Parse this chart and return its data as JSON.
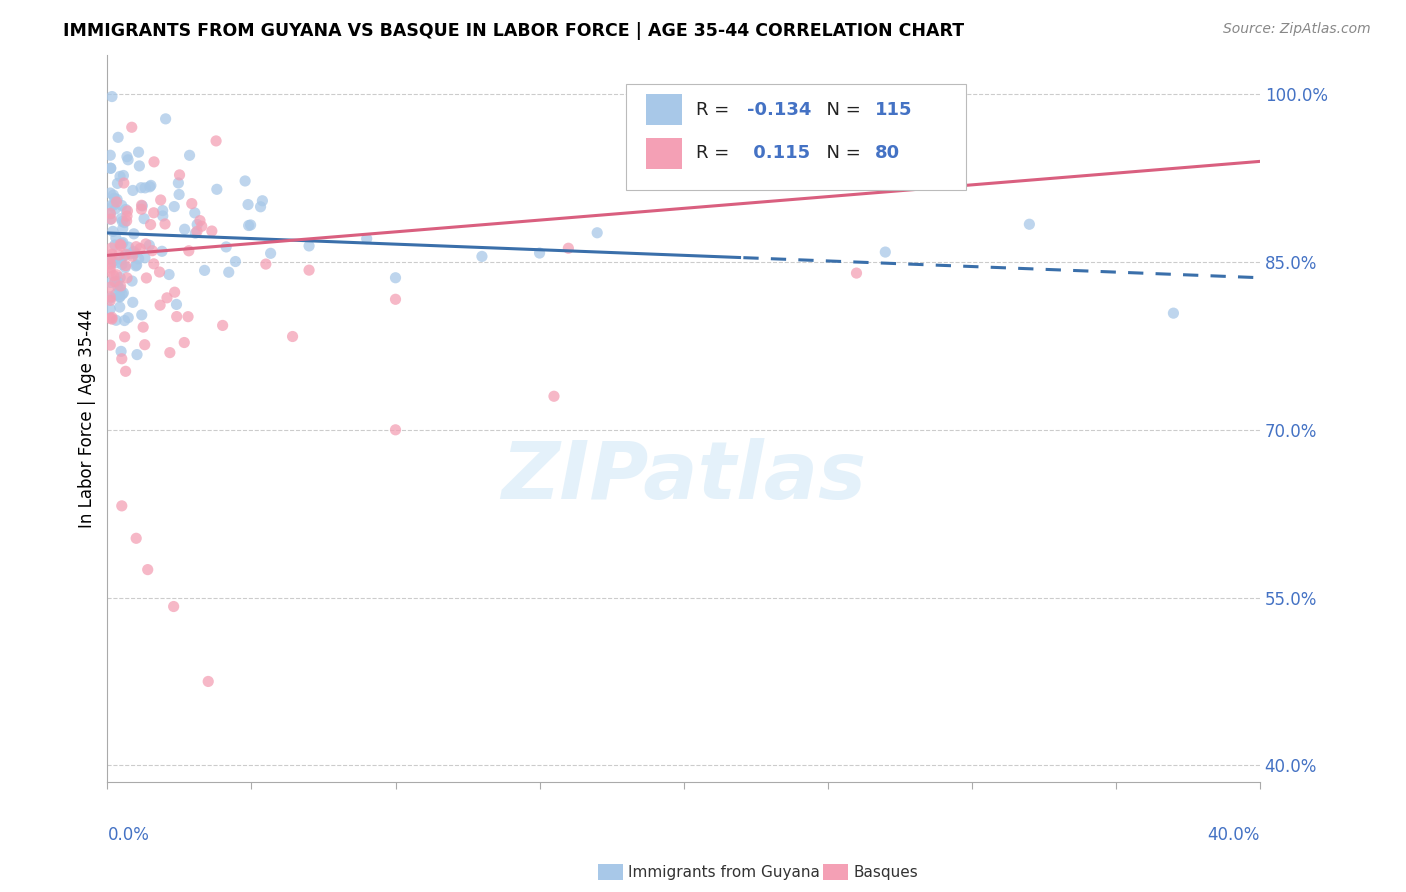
{
  "title": "IMMIGRANTS FROM GUYANA VS BASQUE IN LABOR FORCE | AGE 35-44 CORRELATION CHART",
  "source": "Source: ZipAtlas.com",
  "ylabel": "In Labor Force | Age 35-44",
  "right_yticks": [
    40.0,
    55.0,
    70.0,
    85.0,
    100.0
  ],
  "xmin": 0.0,
  "xmax": 0.4,
  "ymin": 0.385,
  "ymax": 1.035,
  "legend_blue_R": "-0.134",
  "legend_blue_N": "115",
  "legend_pink_R": "0.115",
  "legend_pink_N": "80",
  "blue_color": "#a8c8e8",
  "pink_color": "#f4a0b5",
  "blue_line_color": "#3a6faa",
  "pink_line_color": "#d95f7f",
  "blue_line_x0": 0.0,
  "blue_line_y0": 0.876,
  "blue_line_x1": 0.4,
  "blue_line_y1": 0.836,
  "blue_solid_cutoff": 0.22,
  "pink_line_x0": 0.0,
  "pink_line_y0": 0.856,
  "pink_line_x1": 0.4,
  "pink_line_y1": 0.94
}
